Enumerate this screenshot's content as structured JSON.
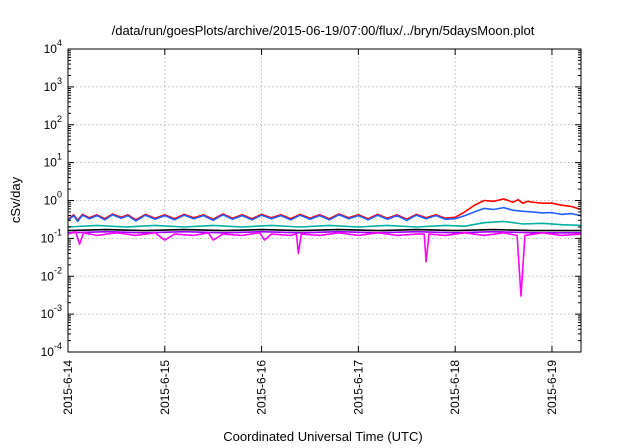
{
  "chart_data": {
    "type": "line",
    "title": "/data/run/goesPlots/archive/2015-06-19/07:00/flux/../bryn/5daysMoon.plot",
    "xlabel": "Coordinated Universal Time (UTC)",
    "ylabel": "cSv/day",
    "yscale": "log",
    "ylim": [
      0.0001,
      10000
    ],
    "xlim": [
      0,
      5.3
    ],
    "grid": true,
    "x_ticks": [
      {
        "x": 0,
        "label": "2015-6-14"
      },
      {
        "x": 1,
        "label": "2015-6-15"
      },
      {
        "x": 2,
        "label": "2015-6-16"
      },
      {
        "x": 3,
        "label": "2015-6-17"
      },
      {
        "x": 4,
        "label": "2015-6-18"
      },
      {
        "x": 5,
        "label": "2015-6-19"
      }
    ],
    "y_ticks": [
      {
        "v": 0.0001,
        "base": "10",
        "exp": "-4"
      },
      {
        "v": 0.001,
        "base": "10",
        "exp": "-3"
      },
      {
        "v": 0.01,
        "base": "10",
        "exp": "-2"
      },
      {
        "v": 0.1,
        "base": "10",
        "exp": "-1"
      },
      {
        "v": 1,
        "base": "10",
        "exp": "0"
      },
      {
        "v": 10,
        "base": "10",
        "exp": "1"
      },
      {
        "v": 100,
        "base": "10",
        "exp": "2"
      },
      {
        "v": 1000,
        "base": "10",
        "exp": "3"
      },
      {
        "v": 10000,
        "base": "10",
        "exp": "4"
      }
    ],
    "series": [
      {
        "color": "#ff0000",
        "points": [
          [
            0,
            0.32
          ],
          [
            0.06,
            0.42
          ],
          [
            0.1,
            0.3
          ],
          [
            0.15,
            0.43
          ],
          [
            0.22,
            0.35
          ],
          [
            0.3,
            0.42
          ],
          [
            0.38,
            0.33
          ],
          [
            0.46,
            0.44
          ],
          [
            0.55,
            0.36
          ],
          [
            0.62,
            0.42
          ],
          [
            0.7,
            0.31
          ],
          [
            0.8,
            0.43
          ],
          [
            0.9,
            0.34
          ],
          [
            1.0,
            0.42
          ],
          [
            1.1,
            0.33
          ],
          [
            1.2,
            0.43
          ],
          [
            1.3,
            0.35
          ],
          [
            1.4,
            0.42
          ],
          [
            1.5,
            0.32
          ],
          [
            1.6,
            0.44
          ],
          [
            1.7,
            0.34
          ],
          [
            1.8,
            0.42
          ],
          [
            1.9,
            0.33
          ],
          [
            2.0,
            0.43
          ],
          [
            2.1,
            0.35
          ],
          [
            2.2,
            0.42
          ],
          [
            2.3,
            0.33
          ],
          [
            2.4,
            0.43
          ],
          [
            2.5,
            0.34
          ],
          [
            2.6,
            0.42
          ],
          [
            2.7,
            0.33
          ],
          [
            2.8,
            0.44
          ],
          [
            2.9,
            0.35
          ],
          [
            3.0,
            0.42
          ],
          [
            3.1,
            0.33
          ],
          [
            3.2,
            0.43
          ],
          [
            3.3,
            0.34
          ],
          [
            3.4,
            0.42
          ],
          [
            3.5,
            0.32
          ],
          [
            3.6,
            0.43
          ],
          [
            3.7,
            0.35
          ],
          [
            3.8,
            0.42
          ],
          [
            3.9,
            0.34
          ],
          [
            4.0,
            0.36
          ],
          [
            4.1,
            0.5
          ],
          [
            4.2,
            0.75
          ],
          [
            4.3,
            1.0
          ],
          [
            4.4,
            0.95
          ],
          [
            4.5,
            1.1
          ],
          [
            4.6,
            0.9
          ],
          [
            4.65,
            1.05
          ],
          [
            4.7,
            0.85
          ],
          [
            4.75,
            0.95
          ],
          [
            4.8,
            0.9
          ],
          [
            4.9,
            0.85
          ],
          [
            5.0,
            0.85
          ],
          [
            5.1,
            0.75
          ],
          [
            5.2,
            0.7
          ],
          [
            5.3,
            0.58
          ]
        ]
      },
      {
        "color": "#1f5fff",
        "points": [
          [
            0,
            0.3
          ],
          [
            0.06,
            0.4
          ],
          [
            0.1,
            0.28
          ],
          [
            0.15,
            0.41
          ],
          [
            0.22,
            0.33
          ],
          [
            0.3,
            0.4
          ],
          [
            0.38,
            0.31
          ],
          [
            0.46,
            0.42
          ],
          [
            0.55,
            0.34
          ],
          [
            0.62,
            0.4
          ],
          [
            0.7,
            0.29
          ],
          [
            0.8,
            0.41
          ],
          [
            0.9,
            0.32
          ],
          [
            1.0,
            0.4
          ],
          [
            1.1,
            0.31
          ],
          [
            1.2,
            0.41
          ],
          [
            1.3,
            0.33
          ],
          [
            1.4,
            0.4
          ],
          [
            1.5,
            0.3
          ],
          [
            1.6,
            0.42
          ],
          [
            1.7,
            0.32
          ],
          [
            1.8,
            0.4
          ],
          [
            1.9,
            0.31
          ],
          [
            2.0,
            0.41
          ],
          [
            2.1,
            0.33
          ],
          [
            2.2,
            0.4
          ],
          [
            2.3,
            0.31
          ],
          [
            2.4,
            0.41
          ],
          [
            2.5,
            0.32
          ],
          [
            2.6,
            0.4
          ],
          [
            2.7,
            0.31
          ],
          [
            2.8,
            0.42
          ],
          [
            2.9,
            0.33
          ],
          [
            3.0,
            0.4
          ],
          [
            3.1,
            0.31
          ],
          [
            3.2,
            0.41
          ],
          [
            3.3,
            0.32
          ],
          [
            3.4,
            0.4
          ],
          [
            3.5,
            0.3
          ],
          [
            3.6,
            0.41
          ],
          [
            3.7,
            0.33
          ],
          [
            3.8,
            0.4
          ],
          [
            3.9,
            0.32
          ],
          [
            4.0,
            0.33
          ],
          [
            4.1,
            0.4
          ],
          [
            4.2,
            0.5
          ],
          [
            4.3,
            0.62
          ],
          [
            4.4,
            0.58
          ],
          [
            4.5,
            0.65
          ],
          [
            4.6,
            0.55
          ],
          [
            4.7,
            0.52
          ],
          [
            4.8,
            0.5
          ],
          [
            4.9,
            0.47
          ],
          [
            5.0,
            0.48
          ],
          [
            5.1,
            0.43
          ],
          [
            5.2,
            0.45
          ],
          [
            5.3,
            0.4
          ]
        ]
      },
      {
        "color": "#00b0a0",
        "points": [
          [
            0,
            0.2
          ],
          [
            0.3,
            0.22
          ],
          [
            0.6,
            0.2
          ],
          [
            0.9,
            0.22
          ],
          [
            1.2,
            0.2
          ],
          [
            1.5,
            0.22
          ],
          [
            1.8,
            0.2
          ],
          [
            2.1,
            0.22
          ],
          [
            2.4,
            0.2
          ],
          [
            2.7,
            0.22
          ],
          [
            3.0,
            0.2
          ],
          [
            3.3,
            0.22
          ],
          [
            3.6,
            0.2
          ],
          [
            3.9,
            0.22
          ],
          [
            4.1,
            0.21
          ],
          [
            4.3,
            0.26
          ],
          [
            4.5,
            0.28
          ],
          [
            4.7,
            0.24
          ],
          [
            4.9,
            0.25
          ],
          [
            5.1,
            0.23
          ],
          [
            5.3,
            0.22
          ]
        ]
      },
      {
        "color": "#000000",
        "points": [
          [
            0,
            0.16
          ],
          [
            0.4,
            0.17
          ],
          [
            0.8,
            0.16
          ],
          [
            1.2,
            0.17
          ],
          [
            1.6,
            0.16
          ],
          [
            2.0,
            0.17
          ],
          [
            2.4,
            0.16
          ],
          [
            2.8,
            0.17
          ],
          [
            3.2,
            0.16
          ],
          [
            3.6,
            0.17
          ],
          [
            4.0,
            0.16
          ],
          [
            4.4,
            0.17
          ],
          [
            4.8,
            0.16
          ],
          [
            5.3,
            0.16
          ]
        ]
      },
      {
        "color": "#a000ff",
        "points": [
          [
            0,
            0.14
          ],
          [
            0.4,
            0.15
          ],
          [
            0.8,
            0.14
          ],
          [
            1.2,
            0.15
          ],
          [
            1.6,
            0.14
          ],
          [
            2.0,
            0.15
          ],
          [
            2.4,
            0.14
          ],
          [
            2.8,
            0.15
          ],
          [
            3.2,
            0.14
          ],
          [
            3.6,
            0.15
          ],
          [
            4.0,
            0.14
          ],
          [
            4.4,
            0.15
          ],
          [
            4.8,
            0.14
          ],
          [
            5.3,
            0.14
          ]
        ]
      },
      {
        "color": "#ff00ff",
        "points": [
          [
            0,
            0.13
          ],
          [
            0.08,
            0.15
          ],
          [
            0.12,
            0.07
          ],
          [
            0.16,
            0.14
          ],
          [
            0.3,
            0.12
          ],
          [
            0.5,
            0.14
          ],
          [
            0.7,
            0.12
          ],
          [
            0.9,
            0.14
          ],
          [
            1.0,
            0.09
          ],
          [
            1.1,
            0.13
          ],
          [
            1.3,
            0.12
          ],
          [
            1.45,
            0.14
          ],
          [
            1.5,
            0.09
          ],
          [
            1.6,
            0.13
          ],
          [
            1.8,
            0.12
          ],
          [
            1.98,
            0.14
          ],
          [
            2.03,
            0.09
          ],
          [
            2.1,
            0.13
          ],
          [
            2.3,
            0.12
          ],
          [
            2.36,
            0.13
          ],
          [
            2.38,
            0.04
          ],
          [
            2.41,
            0.13
          ],
          [
            2.6,
            0.12
          ],
          [
            2.8,
            0.14
          ],
          [
            3.0,
            0.12
          ],
          [
            3.2,
            0.14
          ],
          [
            3.4,
            0.12
          ],
          [
            3.6,
            0.13
          ],
          [
            3.68,
            0.13
          ],
          [
            3.7,
            0.024
          ],
          [
            3.73,
            0.13
          ],
          [
            3.9,
            0.12
          ],
          [
            4.1,
            0.14
          ],
          [
            4.3,
            0.12
          ],
          [
            4.5,
            0.14
          ],
          [
            4.64,
            0.12
          ],
          [
            4.68,
            0.003
          ],
          [
            4.72,
            0.12
          ],
          [
            4.9,
            0.14
          ],
          [
            5.1,
            0.12
          ],
          [
            5.3,
            0.13
          ]
        ]
      }
    ]
  }
}
